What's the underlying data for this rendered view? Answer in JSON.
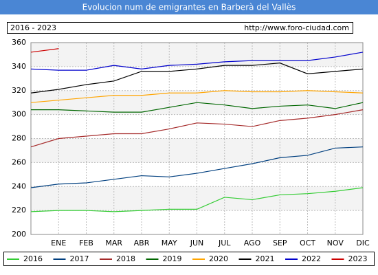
{
  "chart_data": {
    "type": "line",
    "title": "Evolucion num de emigrantes en Barberà del Vallès",
    "period": "2016 - 2023",
    "source": "http://www.foro-ciudad.com",
    "categories": [
      null,
      "ENE",
      "FEB",
      "MAR",
      "ABR",
      "MAY",
      "JUN",
      "JUL",
      "AGO",
      "SEP",
      "OCT",
      "NOV",
      "DIC"
    ],
    "ylim": [
      200,
      360
    ],
    "yticks": [
      200,
      220,
      240,
      260,
      280,
      300,
      320,
      340,
      360
    ],
    "grid": true,
    "series": [
      {
        "name": "2016",
        "color": "#33cc33",
        "values": [
          219,
          220,
          220,
          219,
          220,
          221,
          221,
          231,
          229,
          233,
          234,
          236,
          239
        ]
      },
      {
        "name": "2017",
        "color": "#003f7f",
        "values": [
          239,
          242,
          243,
          246,
          249,
          248,
          251,
          255,
          259,
          264,
          266,
          272,
          273
        ]
      },
      {
        "name": "2018",
        "color": "#a52a2a",
        "values": [
          273,
          280,
          282,
          284,
          284,
          288,
          293,
          292,
          290,
          295,
          297,
          300,
          304
        ]
      },
      {
        "name": "2019",
        "color": "#006600",
        "values": [
          304,
          304,
          303,
          302,
          302,
          306,
          310,
          308,
          305,
          307,
          308,
          305,
          310
        ]
      },
      {
        "name": "2020",
        "color": "#ffa500",
        "values": [
          310,
          312,
          314,
          316,
          316,
          318,
          318,
          320,
          319,
          319,
          320,
          319,
          318
        ]
      },
      {
        "name": "2021",
        "color": "#000000",
        "values": [
          318,
          321,
          325,
          328,
          336,
          336,
          338,
          341,
          341,
          343,
          334,
          336,
          338
        ]
      },
      {
        "name": "2022",
        "color": "#0000cc",
        "values": [
          338,
          337,
          337,
          341,
          338,
          341,
          342,
          344,
          345,
          345,
          345,
          348,
          352
        ]
      },
      {
        "name": "2023",
        "color": "#cc0000",
        "values": [
          352,
          355,
          null,
          null,
          null,
          null,
          null,
          null,
          null,
          null,
          null,
          null,
          null
        ]
      }
    ]
  }
}
